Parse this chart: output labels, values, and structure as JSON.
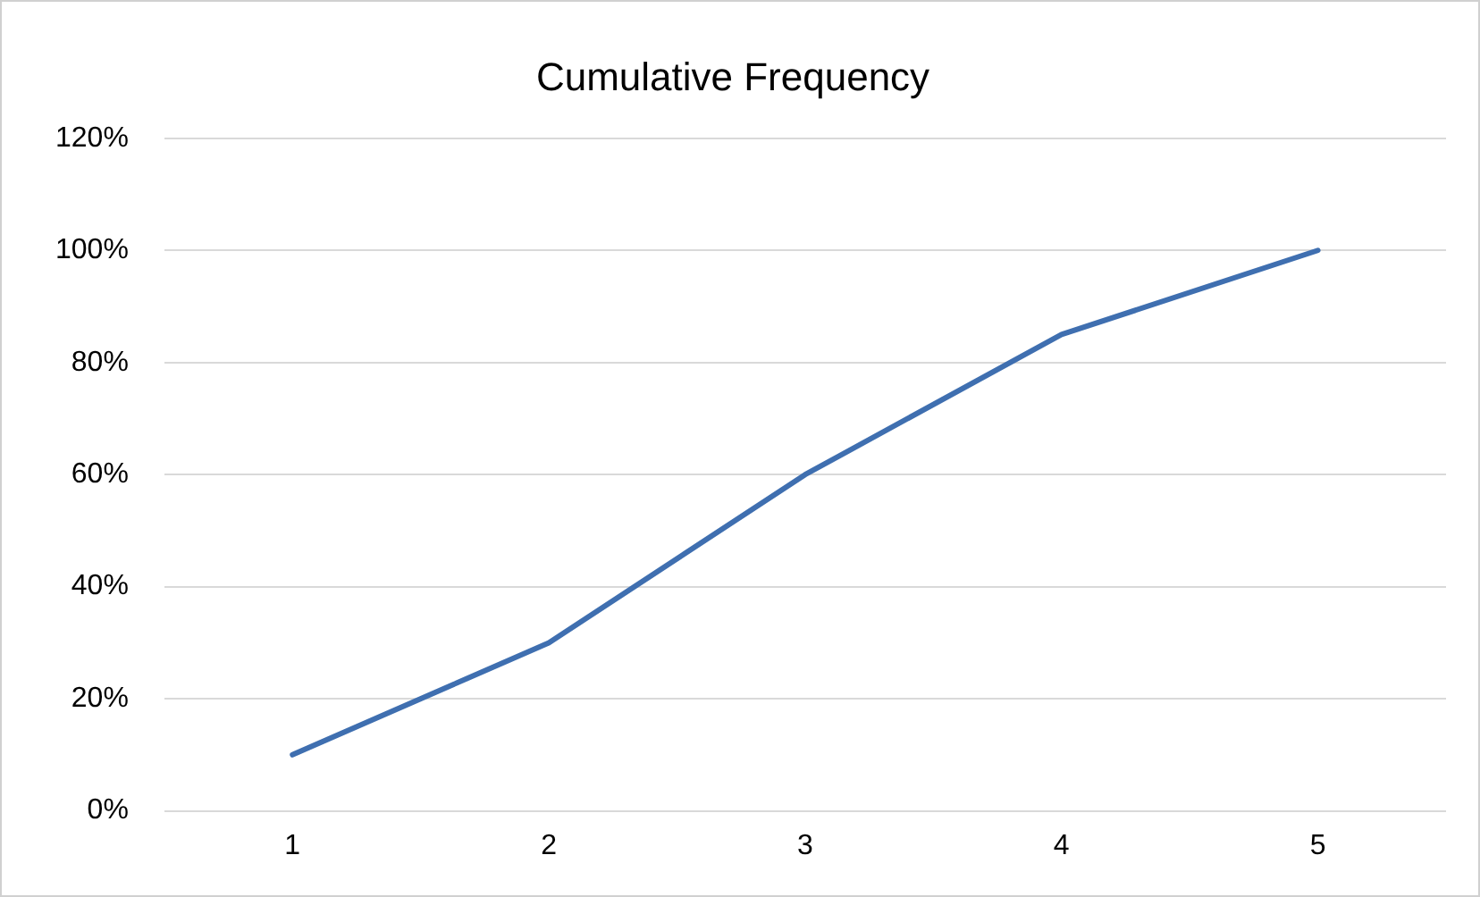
{
  "chart_data": {
    "type": "line",
    "title": "Cumulative Frequency",
    "categories": [
      "1",
      "2",
      "3",
      "4",
      "5"
    ],
    "series": [
      {
        "color": "#3f6fb0",
        "values": [
          10,
          30,
          60,
          85,
          100
        ]
      }
    ],
    "ylim": [
      0,
      120
    ],
    "yticks": [
      {
        "value": 0,
        "label": "0%"
      },
      {
        "value": 20,
        "label": "20%"
      },
      {
        "value": 40,
        "label": "40%"
      },
      {
        "value": 60,
        "label": "60%"
      },
      {
        "value": 80,
        "label": "80%"
      },
      {
        "value": 100,
        "label": "100%"
      },
      {
        "value": 120,
        "label": "120%"
      }
    ],
    "grid": "y",
    "legend": false,
    "marker": "none",
    "line_style": "solid"
  }
}
